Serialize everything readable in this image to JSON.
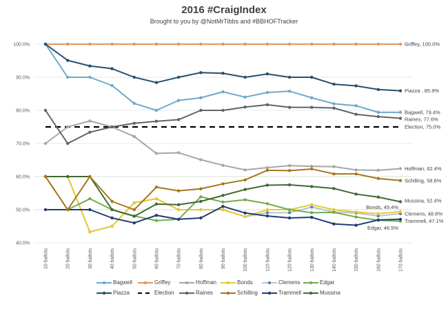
{
  "chart_data": {
    "type": "line",
    "title": "2016 #CraigIndex",
    "subtitle": "Brought to you by @NotMrTibbs and #BBHOFTracker",
    "xlabel": "",
    "ylabel": "",
    "ylim": [
      40,
      100
    ],
    "yticks": [
      40,
      50,
      60,
      70,
      80,
      90,
      100
    ],
    "ytick_labels": [
      "40.0%",
      "50.0%",
      "60.0%",
      "70.0%",
      "80.0%",
      "90.0%",
      "100.0%"
    ],
    "grid": true,
    "legend_position": "bottom",
    "categories": [
      "10 ballots",
      "20 ballots",
      "30 ballots",
      "40 ballots",
      "50 ballots",
      "60 ballots",
      "70 ballots",
      "80 ballots",
      "90 ballots",
      "100 ballots",
      "110 ballots",
      "120 ballots",
      "130 ballots",
      "140 ballots",
      "150 ballots",
      "160 ballots",
      "170 ballots"
    ],
    "series": [
      {
        "name": "Bagwell",
        "color": "#6fa8c8",
        "marker": true,
        "dashed": false,
        "end_label": "Bagwell, 79.4%",
        "values": [
          100,
          90,
          90,
          87.5,
          82.1,
          80.0,
          83.0,
          83.8,
          85.6,
          84.0,
          85.4,
          85.8,
          83.8,
          82.0,
          81.4,
          79.4,
          79.4
        ]
      },
      {
        "name": "Griffey",
        "color": "#e0955a",
        "marker": true,
        "dashed": false,
        "end_label": "Griffey, 100.0%",
        "values": [
          100,
          100,
          100,
          100,
          100,
          100,
          100,
          100,
          100,
          100,
          100,
          100,
          100,
          100,
          100,
          100,
          100
        ]
      },
      {
        "name": "Hoffman",
        "color": "#a6a6a6",
        "marker": true,
        "dashed": false,
        "end_label": "Hoffman, 62.4%",
        "values": [
          70.0,
          75.0,
          76.8,
          75.0,
          72.1,
          67.0,
          67.2,
          65.1,
          63.4,
          62.0,
          62.7,
          63.3,
          63.1,
          63.0,
          62.0,
          61.9,
          62.4
        ]
      },
      {
        "name": "Bonds",
        "color": "#e6c935",
        "marker": true,
        "dashed": false,
        "end_label": "Bonds, 49.4%",
        "values": [
          60.0,
          60.0,
          43.3,
          45.0,
          52.1,
          53.3,
          50.0,
          50.0,
          50.0,
          47.9,
          50.0,
          50.0,
          51.5,
          50.0,
          49.3,
          48.8,
          49.4
        ]
      },
      {
        "name": "Clemens",
        "color": "#b8c4cc",
        "marker_color": "#5b7fb0",
        "marker": true,
        "dashed": false,
        "end_label": "Clemens, 48.8%",
        "values": [
          60.0,
          60.0,
          43.3,
          45.0,
          52.1,
          53.3,
          50.0,
          50.0,
          50.0,
          47.9,
          49.1,
          49.1,
          50.8,
          49.3,
          49.0,
          48.1,
          48.8
        ]
      },
      {
        "name": "Edgar",
        "color": "#70ad47",
        "marker": true,
        "dashed": false,
        "end_label": "Edgar, 46.5%",
        "values": [
          60.0,
          50.0,
          53.3,
          50.0,
          48.1,
          46.7,
          47.1,
          53.9,
          52.3,
          53.0,
          51.8,
          50.0,
          49.1,
          49.2,
          47.8,
          46.8,
          46.5
        ]
      },
      {
        "name": "Piazza",
        "color": "#264f6e",
        "marker": true,
        "dashed": false,
        "end_label": "Piazza , 85.9%",
        "values": [
          100,
          95.1,
          93.4,
          92.6,
          90.0,
          88.4,
          90.0,
          91.4,
          91.2,
          90.0,
          91.0,
          90.0,
          90.0,
          87.9,
          87.4,
          86.3,
          85.9
        ]
      },
      {
        "name": "Election",
        "color": "#000000",
        "marker": false,
        "dashed": true,
        "end_label": "Election, 75.0%",
        "values": [
          75,
          75,
          75,
          75,
          75,
          75,
          75,
          75,
          75,
          75,
          75,
          75,
          75,
          75,
          75,
          75,
          75
        ]
      },
      {
        "name": "Raines",
        "color": "#636363",
        "marker": true,
        "dashed": false,
        "end_label": "Raines, 77.6%",
        "values": [
          80.0,
          70.0,
          73.4,
          75.0,
          76.1,
          76.7,
          77.2,
          80.0,
          80.0,
          81.0,
          81.7,
          80.9,
          80.9,
          80.7,
          78.8,
          78.1,
          77.6
        ]
      },
      {
        "name": "Schilling",
        "color": "#a5761c",
        "marker": true,
        "dashed": false,
        "end_label": "Schilling, 58.8%",
        "values": [
          60.0,
          50.0,
          60.0,
          52.5,
          50.0,
          56.8,
          55.7,
          56.3,
          57.8,
          59.0,
          61.9,
          61.8,
          62.3,
          60.8,
          60.8,
          59.4,
          58.8
        ]
      },
      {
        "name": "Trammell",
        "color": "#1f3d73",
        "marker": true,
        "dashed": false,
        "end_label": "Trammell, 47.1%",
        "values": [
          50.0,
          50.0,
          50.0,
          47.5,
          46.0,
          48.3,
          47.1,
          47.5,
          51.0,
          49.0,
          48.1,
          47.5,
          47.7,
          45.7,
          45.3,
          46.9,
          47.1
        ]
      },
      {
        "name": "Mussina",
        "color": "#3f6a32",
        "marker": true,
        "dashed": false,
        "end_label": "Mussina, 52.4%",
        "values": [
          60.0,
          60.0,
          60.0,
          50.0,
          48.0,
          51.7,
          51.5,
          52.5,
          54.3,
          56.1,
          57.4,
          57.5,
          57.0,
          56.4,
          54.7,
          53.8,
          52.4
        ]
      }
    ],
    "legend_rows": [
      [
        "Bagwell",
        "Griffey",
        "Hoffman",
        "Bonds",
        "Clemens",
        "Edgar"
      ],
      [
        "Piazza",
        "Election",
        "Raines",
        "Schilling",
        "Trammell",
        "Mussina"
      ]
    ]
  }
}
